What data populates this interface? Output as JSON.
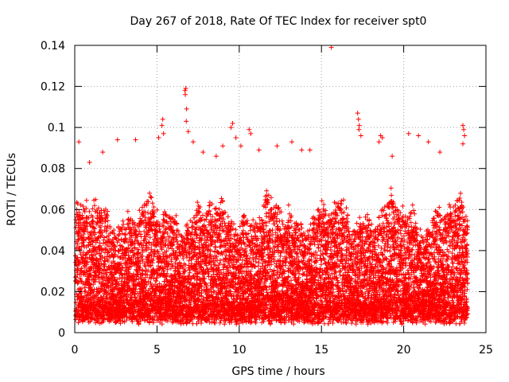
{
  "chart_data": {
    "type": "scatter",
    "title": "Day 267 of 2018, Rate Of TEC Index for receiver spt0",
    "xlabel": "GPS time / hours",
    "ylabel": "ROTI / TECUs",
    "xlim": [
      0,
      25
    ],
    "ylim": [
      0,
      0.14
    ],
    "xticks": [
      "0",
      "5",
      "10",
      "15",
      "20",
      "25"
    ],
    "yticks": [
      "0",
      "0.02",
      "0.04",
      "0.06",
      "0.08",
      "0.1",
      "0.12",
      "0.14"
    ],
    "grid": true,
    "marker": "plus",
    "color": "#ff0000",
    "series": [
      {
        "name": "ROTI",
        "band": {
          "x_start": 0.05,
          "x_end": 23.9,
          "x_step": 0.01,
          "y_floor_typical": 0.008,
          "y_ceiling_typical": 0.07
        },
        "outliers": [
          {
            "x": 0.25,
            "y": 0.093
          },
          {
            "x": 0.9,
            "y": 0.083
          },
          {
            "x": 1.7,
            "y": 0.088
          },
          {
            "x": 2.6,
            "y": 0.094
          },
          {
            "x": 3.7,
            "y": 0.094
          },
          {
            "x": 5.3,
            "y": 0.101
          },
          {
            "x": 5.4,
            "y": 0.097
          },
          {
            "x": 5.35,
            "y": 0.104
          },
          {
            "x": 5.1,
            "y": 0.095
          },
          {
            "x": 6.7,
            "y": 0.118
          },
          {
            "x": 6.75,
            "y": 0.119
          },
          {
            "x": 6.72,
            "y": 0.116
          },
          {
            "x": 6.8,
            "y": 0.109
          },
          {
            "x": 6.78,
            "y": 0.103
          },
          {
            "x": 6.9,
            "y": 0.098
          },
          {
            "x": 7.2,
            "y": 0.093
          },
          {
            "x": 7.8,
            "y": 0.088
          },
          {
            "x": 8.6,
            "y": 0.086
          },
          {
            "x": 9.0,
            "y": 0.091
          },
          {
            "x": 9.5,
            "y": 0.1
          },
          {
            "x": 9.6,
            "y": 0.102
          },
          {
            "x": 9.8,
            "y": 0.095
          },
          {
            "x": 10.1,
            "y": 0.091
          },
          {
            "x": 10.6,
            "y": 0.099
          },
          {
            "x": 10.7,
            "y": 0.097
          },
          {
            "x": 11.2,
            "y": 0.089
          },
          {
            "x": 12.3,
            "y": 0.091
          },
          {
            "x": 13.2,
            "y": 0.093
          },
          {
            "x": 13.8,
            "y": 0.089
          },
          {
            "x": 14.3,
            "y": 0.089
          },
          {
            "x": 15.6,
            "y": 0.139
          },
          {
            "x": 17.2,
            "y": 0.107
          },
          {
            "x": 17.25,
            "y": 0.104
          },
          {
            "x": 17.3,
            "y": 0.101
          },
          {
            "x": 17.28,
            "y": 0.099
          },
          {
            "x": 17.4,
            "y": 0.096
          },
          {
            "x": 18.6,
            "y": 0.096
          },
          {
            "x": 18.7,
            "y": 0.095
          },
          {
            "x": 18.5,
            "y": 0.093
          },
          {
            "x": 19.3,
            "y": 0.086
          },
          {
            "x": 20.3,
            "y": 0.097
          },
          {
            "x": 20.9,
            "y": 0.096
          },
          {
            "x": 21.5,
            "y": 0.093
          },
          {
            "x": 22.2,
            "y": 0.088
          },
          {
            "x": 23.6,
            "y": 0.101
          },
          {
            "x": 23.65,
            "y": 0.099
          },
          {
            "x": 23.7,
            "y": 0.096
          },
          {
            "x": 23.6,
            "y": 0.092
          }
        ]
      }
    ]
  }
}
